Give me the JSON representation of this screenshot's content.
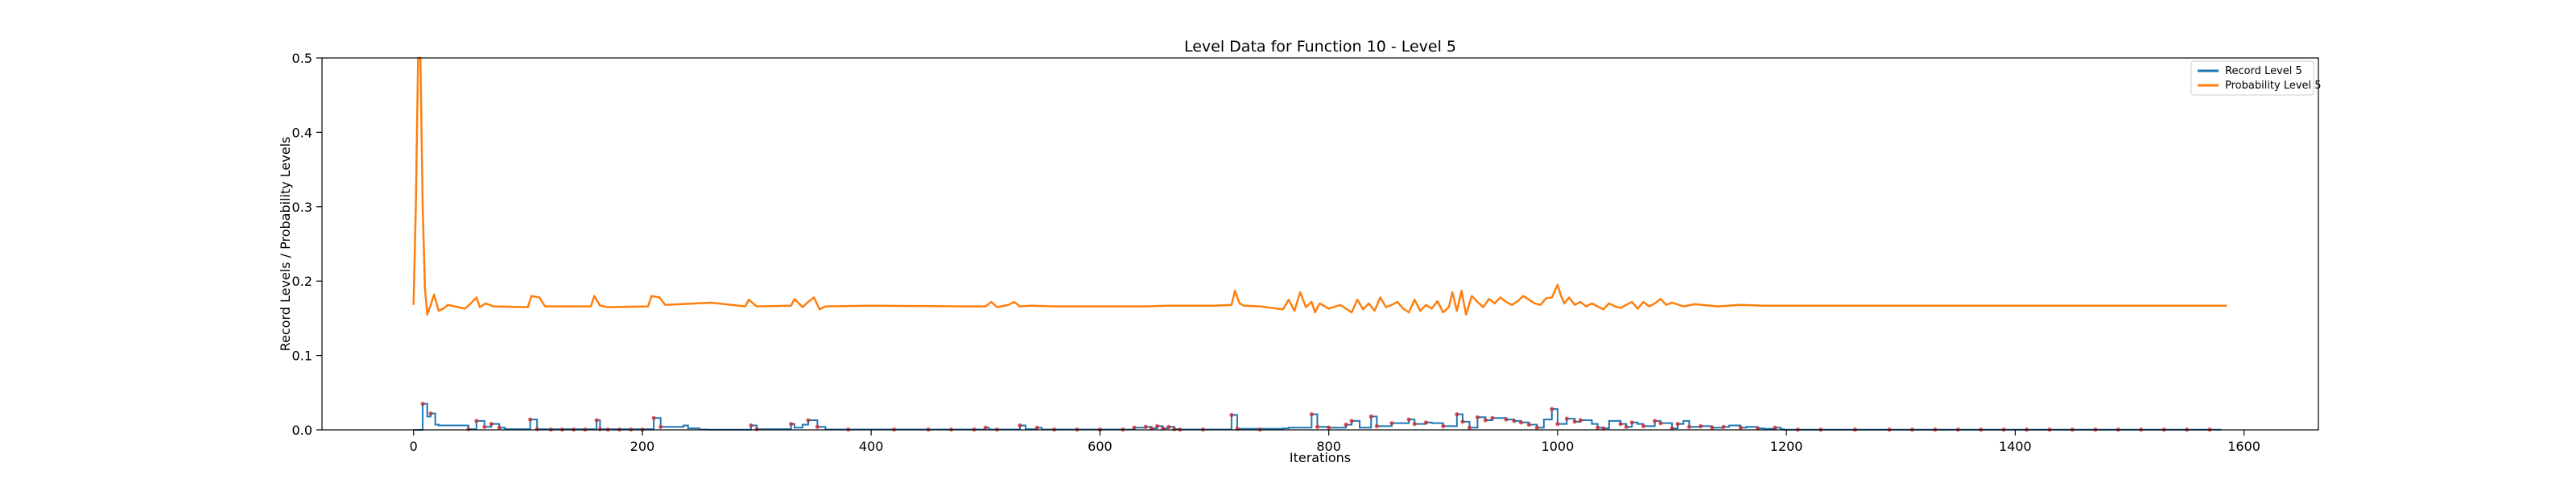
{
  "chart_data": {
    "type": "line",
    "title": "Level Data for Function 10 - Level 5",
    "xlabel": "Iterations",
    "ylabel": "Record Levels / Probability Levels",
    "xlim": [
      -80,
      1665
    ],
    "ylim": [
      0,
      0.5
    ],
    "x_ticks": [
      0,
      200,
      400,
      600,
      800,
      1000,
      1200,
      1400,
      1600
    ],
    "x_tick_labels": [
      "0",
      "200",
      "400",
      "600",
      "800",
      "1000",
      "1200",
      "1400",
      "1600"
    ],
    "y_ticks": [
      0.0,
      0.1,
      0.2,
      0.3,
      0.4,
      0.5
    ],
    "y_tick_labels": [
      "0.0",
      "0.1",
      "0.2",
      "0.3",
      "0.4",
      "0.5"
    ],
    "grid": false,
    "legend": "top-right",
    "colors": {
      "record": "#1f77b4",
      "probability": "#ff7f0e",
      "markers": "#d62728"
    },
    "series": [
      {
        "name": "Record Level 5",
        "color": "#1f77b4",
        "style": "step",
        "x": [
          0,
          5,
          8,
          12,
          15,
          19,
          22,
          48,
          55,
          62,
          68,
          75,
          80,
          102,
          108,
          160,
          163,
          210,
          216,
          236,
          240,
          250,
          256,
          295,
          300,
          330,
          333,
          340,
          345,
          353,
          360,
          500,
          503,
          530,
          535,
          545,
          549,
          630,
          640,
          645,
          650,
          655,
          660,
          665,
          670,
          715,
          720,
          760,
          765,
          785,
          790,
          800,
          815,
          820,
          827,
          837,
          842,
          855,
          870,
          875,
          885,
          890,
          900,
          912,
          917,
          923,
          930,
          937,
          943,
          955,
          962,
          968,
          975,
          982,
          988,
          995,
          1000,
          1008,
          1015,
          1020,
          1030,
          1035,
          1040,
          1045,
          1055,
          1060,
          1065,
          1070,
          1075,
          1085,
          1090,
          1100,
          1105,
          1110,
          1115,
          1125,
          1135,
          1145,
          1150,
          1160,
          1165,
          1175,
          1180,
          1190,
          1195,
          1198,
          1250,
          1580
        ],
        "values": [
          0.0,
          0.0,
          0.035,
          0.018,
          0.022,
          0.007,
          0.006,
          0.001,
          0.012,
          0.004,
          0.008,
          0.003,
          0.001,
          0.014,
          0.001,
          0.013,
          0.001,
          0.016,
          0.004,
          0.006,
          0.002,
          0.0005,
          0.0003,
          0.006,
          0.001,
          0.008,
          0.003,
          0.007,
          0.013,
          0.004,
          0.0005,
          0.003,
          0.0005,
          0.006,
          0.001,
          0.003,
          0.0005,
          0.003,
          0.004,
          0.002,
          0.005,
          0.002,
          0.004,
          0.001,
          0.0005,
          0.02,
          0.0015,
          0.002,
          0.003,
          0.021,
          0.004,
          0.003,
          0.007,
          0.012,
          0.003,
          0.018,
          0.005,
          0.009,
          0.014,
          0.008,
          0.01,
          0.009,
          0.005,
          0.021,
          0.011,
          0.003,
          0.017,
          0.013,
          0.016,
          0.014,
          0.012,
          0.01,
          0.007,
          0.003,
          0.014,
          0.028,
          0.008,
          0.015,
          0.011,
          0.013,
          0.008,
          0.003,
          0.002,
          0.012,
          0.008,
          0.004,
          0.01,
          0.008,
          0.005,
          0.012,
          0.009,
          0.002,
          0.008,
          0.012,
          0.004,
          0.005,
          0.003,
          0.004,
          0.006,
          0.003,
          0.004,
          0.002,
          0.0015,
          0.003,
          0.001,
          0.0003,
          0.0003,
          0.0003
        ]
      },
      {
        "name": "Probability Level 5",
        "color": "#ff7f0e",
        "style": "line",
        "x": [
          0,
          2,
          4,
          6,
          8,
          10,
          12,
          15,
          18,
          22,
          26,
          30,
          45,
          50,
          55,
          58,
          63,
          70,
          100,
          103,
          110,
          115,
          155,
          158,
          163,
          170,
          205,
          208,
          215,
          220,
          260,
          290,
          293,
          300,
          330,
          333,
          340,
          345,
          350,
          355,
          360,
          400,
          480,
          500,
          505,
          510,
          520,
          525,
          530,
          540,
          560,
          600,
          640,
          660,
          680,
          700,
          715,
          718,
          722,
          726,
          740,
          760,
          765,
          770,
          775,
          780,
          785,
          788,
          792,
          800,
          810,
          820,
          825,
          830,
          835,
          840,
          845,
          850,
          855,
          860,
          865,
          870,
          875,
          880,
          885,
          890,
          895,
          900,
          905,
          908,
          912,
          916,
          920,
          925,
          930,
          935,
          940,
          945,
          950,
          955,
          960,
          965,
          970,
          975,
          980,
          985,
          990,
          995,
          1000,
          1003,
          1006,
          1010,
          1015,
          1020,
          1025,
          1030,
          1035,
          1040,
          1045,
          1050,
          1055,
          1060,
          1065,
          1070,
          1075,
          1080,
          1085,
          1090,
          1095,
          1100,
          1110,
          1120,
          1140,
          1160,
          1180,
          1200,
          1250,
          1300,
          1400,
          1500,
          1585
        ],
        "values": [
          0.168,
          0.3,
          0.5,
          0.5,
          0.3,
          0.19,
          0.155,
          0.168,
          0.182,
          0.16,
          0.163,
          0.168,
          0.163,
          0.17,
          0.178,
          0.165,
          0.17,
          0.166,
          0.165,
          0.18,
          0.178,
          0.166,
          0.166,
          0.18,
          0.167,
          0.165,
          0.166,
          0.18,
          0.178,
          0.168,
          0.171,
          0.166,
          0.175,
          0.166,
          0.167,
          0.176,
          0.165,
          0.172,
          0.178,
          0.162,
          0.166,
          0.167,
          0.166,
          0.166,
          0.172,
          0.165,
          0.168,
          0.172,
          0.166,
          0.167,
          0.166,
          0.166,
          0.166,
          0.167,
          0.167,
          0.167,
          0.168,
          0.187,
          0.17,
          0.167,
          0.166,
          0.162,
          0.175,
          0.16,
          0.185,
          0.165,
          0.172,
          0.158,
          0.17,
          0.163,
          0.168,
          0.158,
          0.175,
          0.162,
          0.17,
          0.16,
          0.178,
          0.165,
          0.168,
          0.172,
          0.163,
          0.158,
          0.175,
          0.16,
          0.168,
          0.163,
          0.173,
          0.158,
          0.165,
          0.185,
          0.16,
          0.187,
          0.155,
          0.18,
          0.172,
          0.165,
          0.176,
          0.17,
          0.178,
          0.172,
          0.168,
          0.173,
          0.18,
          0.175,
          0.17,
          0.168,
          0.177,
          0.178,
          0.195,
          0.18,
          0.17,
          0.178,
          0.168,
          0.172,
          0.166,
          0.17,
          0.166,
          0.162,
          0.17,
          0.166,
          0.164,
          0.168,
          0.172,
          0.163,
          0.172,
          0.166,
          0.17,
          0.176,
          0.168,
          0.171,
          0.166,
          0.169,
          0.166,
          0.168,
          0.167,
          0.167,
          0.167,
          0.167,
          0.167,
          0.167,
          0.167
        ]
      }
    ],
    "markers": {
      "color": "#d62728",
      "x": [
        8,
        15,
        48,
        55,
        62,
        68,
        75,
        102,
        108,
        120,
        130,
        140,
        150,
        160,
        163,
        170,
        180,
        190,
        200,
        210,
        216,
        295,
        300,
        330,
        345,
        353,
        380,
        420,
        450,
        470,
        490,
        500,
        510,
        530,
        545,
        560,
        580,
        600,
        620,
        630,
        640,
        645,
        650,
        655,
        660,
        665,
        670,
        690,
        715,
        720,
        740,
        785,
        790,
        800,
        815,
        820,
        837,
        842,
        855,
        870,
        875,
        885,
        900,
        912,
        917,
        923,
        930,
        937,
        943,
        955,
        962,
        968,
        975,
        982,
        995,
        1000,
        1008,
        1015,
        1020,
        1035,
        1040,
        1055,
        1060,
        1065,
        1075,
        1085,
        1090,
        1100,
        1105,
        1115,
        1125,
        1135,
        1145,
        1160,
        1175,
        1190,
        1210,
        1230,
        1260,
        1290,
        1310,
        1330,
        1350,
        1370,
        1390,
        1410,
        1430,
        1450,
        1470,
        1490,
        1510,
        1530,
        1550,
        1570
      ],
      "values": [
        0.035,
        0.022,
        0.001,
        0.012,
        0.004,
        0.008,
        0.003,
        0.014,
        0.001,
        0.0005,
        0.0005,
        0.0005,
        0.0005,
        0.013,
        0.001,
        0.0005,
        0.0005,
        0.0005,
        0.0005,
        0.016,
        0.004,
        0.006,
        0.001,
        0.008,
        0.013,
        0.004,
        0.0005,
        0.0005,
        0.0005,
        0.0005,
        0.0005,
        0.003,
        0.0005,
        0.006,
        0.003,
        0.0005,
        0.0005,
        0.0005,
        0.0005,
        0.003,
        0.004,
        0.002,
        0.005,
        0.002,
        0.004,
        0.001,
        0.0005,
        0.0005,
        0.02,
        0.0015,
        0.0005,
        0.021,
        0.004,
        0.003,
        0.007,
        0.012,
        0.018,
        0.005,
        0.009,
        0.014,
        0.008,
        0.01,
        0.005,
        0.021,
        0.011,
        0.003,
        0.017,
        0.013,
        0.016,
        0.014,
        0.012,
        0.01,
        0.007,
        0.003,
        0.028,
        0.008,
        0.015,
        0.011,
        0.013,
        0.003,
        0.002,
        0.008,
        0.004,
        0.01,
        0.005,
        0.012,
        0.009,
        0.002,
        0.008,
        0.004,
        0.005,
        0.003,
        0.004,
        0.003,
        0.002,
        0.003,
        0.0003,
        0.0003,
        0.0003,
        0.0003,
        0.0003,
        0.0003,
        0.0003,
        0.0003,
        0.0003,
        0.0003,
        0.0003,
        0.0003,
        0.0003,
        0.0003,
        0.0003,
        0.0003,
        0.0003,
        0.0003
      ]
    }
  }
}
